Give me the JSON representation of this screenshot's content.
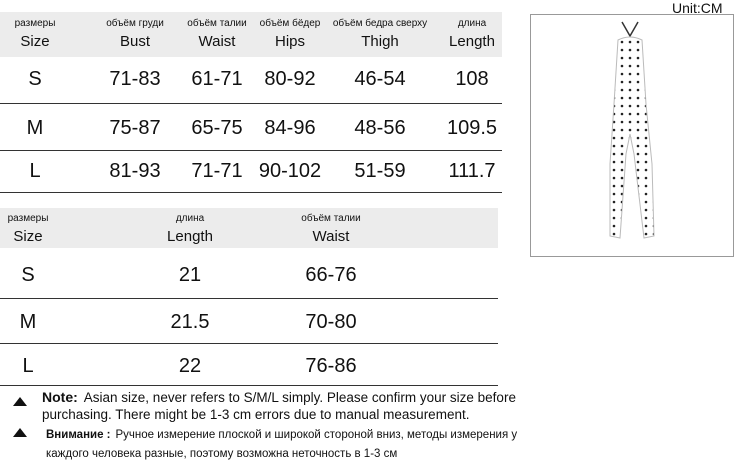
{
  "unit": "Unit:CM",
  "table1": {
    "header": [
      [
        "размеры",
        "Size"
      ],
      [
        "объём груди",
        "Bust"
      ],
      [
        "объём талии",
        "Waist"
      ],
      [
        "объём бёдер",
        "Hips"
      ],
      [
        "объём бедра сверху",
        "Thigh"
      ],
      [
        "длина",
        "Length"
      ]
    ],
    "rows": [
      [
        "S",
        "71-83",
        "61-71",
        "80-92",
        "46-54",
        "108"
      ],
      [
        "M",
        "75-87",
        "65-75",
        "84-96",
        "48-56",
        "109.5"
      ],
      [
        "L",
        "81-93",
        "71-71",
        "90-102",
        "51-59",
        "111.7"
      ]
    ]
  },
  "table2": {
    "header": [
      [
        "размеры",
        "Size"
      ],
      [
        "длина",
        "Length"
      ],
      [
        "объём талии",
        "Waist"
      ]
    ],
    "rows": [
      [
        "S",
        "21",
        "66-76"
      ],
      [
        "M",
        "21.5",
        "70-80"
      ],
      [
        "L",
        "22",
        "76-86"
      ]
    ]
  },
  "notes": [
    {
      "label": "Note:",
      "text": "Asian size, never refers to S/M/L simply. Please confirm your size before purchasing. There might be 1-3 cm errors due to manual measurement."
    },
    {
      "label": "Внимание :",
      "text": "Ручное измерение плоской и широкой стороной вниз, методы измерения у каждого человека разные, поэтому возможна неточность в 1-3 см"
    }
  ]
}
